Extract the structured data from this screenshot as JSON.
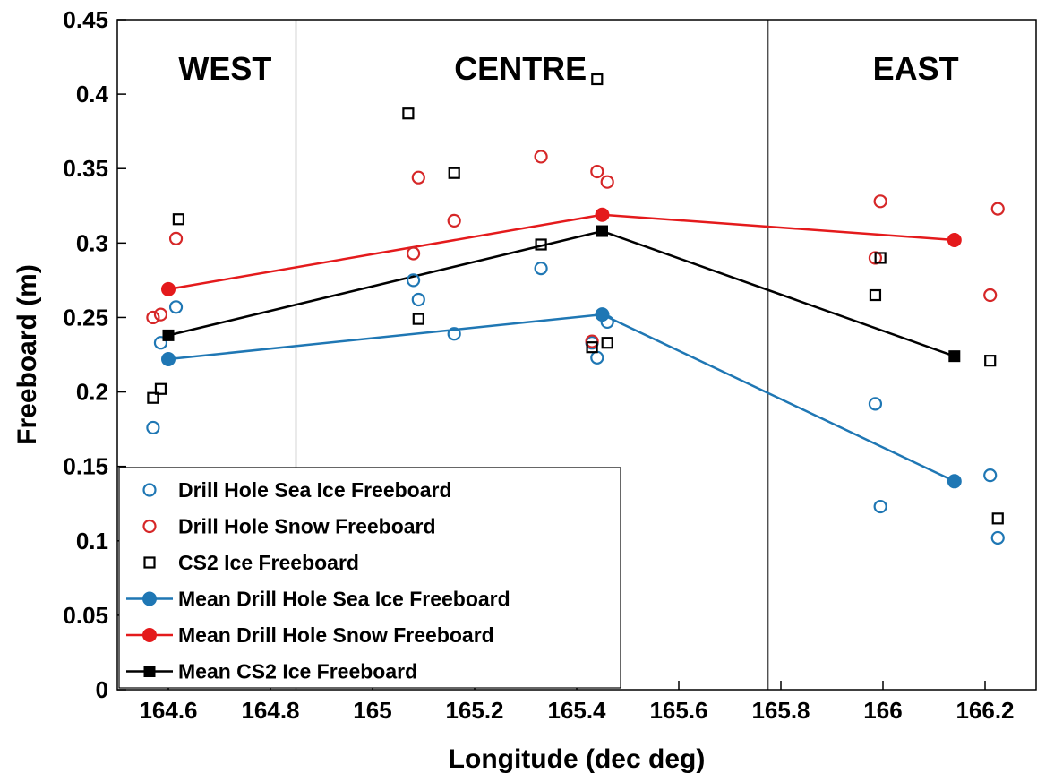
{
  "chart_data": {
    "type": "scatter",
    "xlabel": "Longitude (dec deg)",
    "ylabel": "Freeboard (m)",
    "xlim": [
      164.5,
      166.3
    ],
    "ylim": [
      0,
      0.45
    ],
    "xticks": [
      164.6,
      164.8,
      165,
      165.2,
      165.4,
      165.6,
      165.8,
      166,
      166.2
    ],
    "xtick_labels": [
      "164.6",
      "164.8",
      "165",
      "165.2",
      "165.4",
      "165.6",
      "165.8",
      "166",
      "166.2"
    ],
    "yticks": [
      0,
      0.05,
      0.1,
      0.15,
      0.2,
      0.25,
      0.3,
      0.35,
      0.4,
      0.45
    ],
    "ytick_labels": [
      "0",
      "0.05",
      "0.1",
      "0.15",
      "0.2",
      "0.25",
      "0.3",
      "0.35",
      "0.4",
      "0.45"
    ],
    "grid": false,
    "legend_position": "bottom-left",
    "region_dividers": [
      164.85,
      165.775
    ],
    "region_labels": [
      {
        "text": "WEST",
        "x": 164.62,
        "y": 0.418
      },
      {
        "text": "CENTRE",
        "x": 165.16,
        "y": 0.418
      },
      {
        "text": "EAST",
        "x": 165.98,
        "y": 0.418
      }
    ],
    "series": [
      {
        "name": "Drill Hole Sea Ice Freeboard",
        "marker": "circle-open",
        "color": "#1f77b4",
        "points": [
          [
            164.57,
            0.176
          ],
          [
            164.585,
            0.233
          ],
          [
            164.615,
            0.257
          ],
          [
            165.08,
            0.275
          ],
          [
            165.09,
            0.262
          ],
          [
            165.16,
            0.239
          ],
          [
            165.33,
            0.283
          ],
          [
            165.43,
            0.233
          ],
          [
            165.44,
            0.223
          ],
          [
            165.46,
            0.247
          ],
          [
            165.985,
            0.192
          ],
          [
            165.995,
            0.123
          ],
          [
            166.21,
            0.144
          ],
          [
            166.225,
            0.102
          ]
        ]
      },
      {
        "name": "Drill Hole Snow Freeboard",
        "marker": "circle-open",
        "color": "#d62728",
        "points": [
          [
            164.57,
            0.25
          ],
          [
            164.585,
            0.252
          ],
          [
            164.615,
            0.303
          ],
          [
            165.08,
            0.293
          ],
          [
            165.09,
            0.344
          ],
          [
            165.16,
            0.315
          ],
          [
            165.33,
            0.358
          ],
          [
            165.43,
            0.234
          ],
          [
            165.44,
            0.348
          ],
          [
            165.46,
            0.341
          ],
          [
            165.985,
            0.29
          ],
          [
            165.995,
            0.328
          ],
          [
            166.21,
            0.265
          ],
          [
            166.225,
            0.323
          ]
        ]
      },
      {
        "name": "CS2 Ice Freeboard",
        "marker": "square-open",
        "color": "#000000",
        "points": [
          [
            164.57,
            0.196
          ],
          [
            164.585,
            0.202
          ],
          [
            164.62,
            0.316
          ],
          [
            165.07,
            0.387
          ],
          [
            165.09,
            0.249
          ],
          [
            165.16,
            0.347
          ],
          [
            165.33,
            0.299
          ],
          [
            165.43,
            0.23
          ],
          [
            165.44,
            0.41
          ],
          [
            165.46,
            0.233
          ],
          [
            165.985,
            0.265
          ],
          [
            165.995,
            0.29
          ],
          [
            166.21,
            0.221
          ],
          [
            166.225,
            0.115
          ]
        ]
      },
      {
        "name": "Mean Drill Hole Sea Ice Freeboard",
        "marker": "circle-filled",
        "line": true,
        "color": "#1f77b4",
        "points": [
          [
            164.6,
            0.222
          ],
          [
            165.45,
            0.252
          ],
          [
            166.14,
            0.14
          ]
        ]
      },
      {
        "name": "Mean Drill Hole Snow Freeboard",
        "marker": "circle-filled",
        "line": true,
        "color": "#e41a1c",
        "points": [
          [
            164.6,
            0.269
          ],
          [
            165.45,
            0.319
          ],
          [
            166.14,
            0.302
          ]
        ]
      },
      {
        "name": "Mean CS2 Ice Freeboard",
        "marker": "square-filled",
        "line": true,
        "color": "#000000",
        "points": [
          [
            164.6,
            0.238
          ],
          [
            165.45,
            0.308
          ],
          [
            166.14,
            0.224
          ]
        ]
      }
    ]
  }
}
